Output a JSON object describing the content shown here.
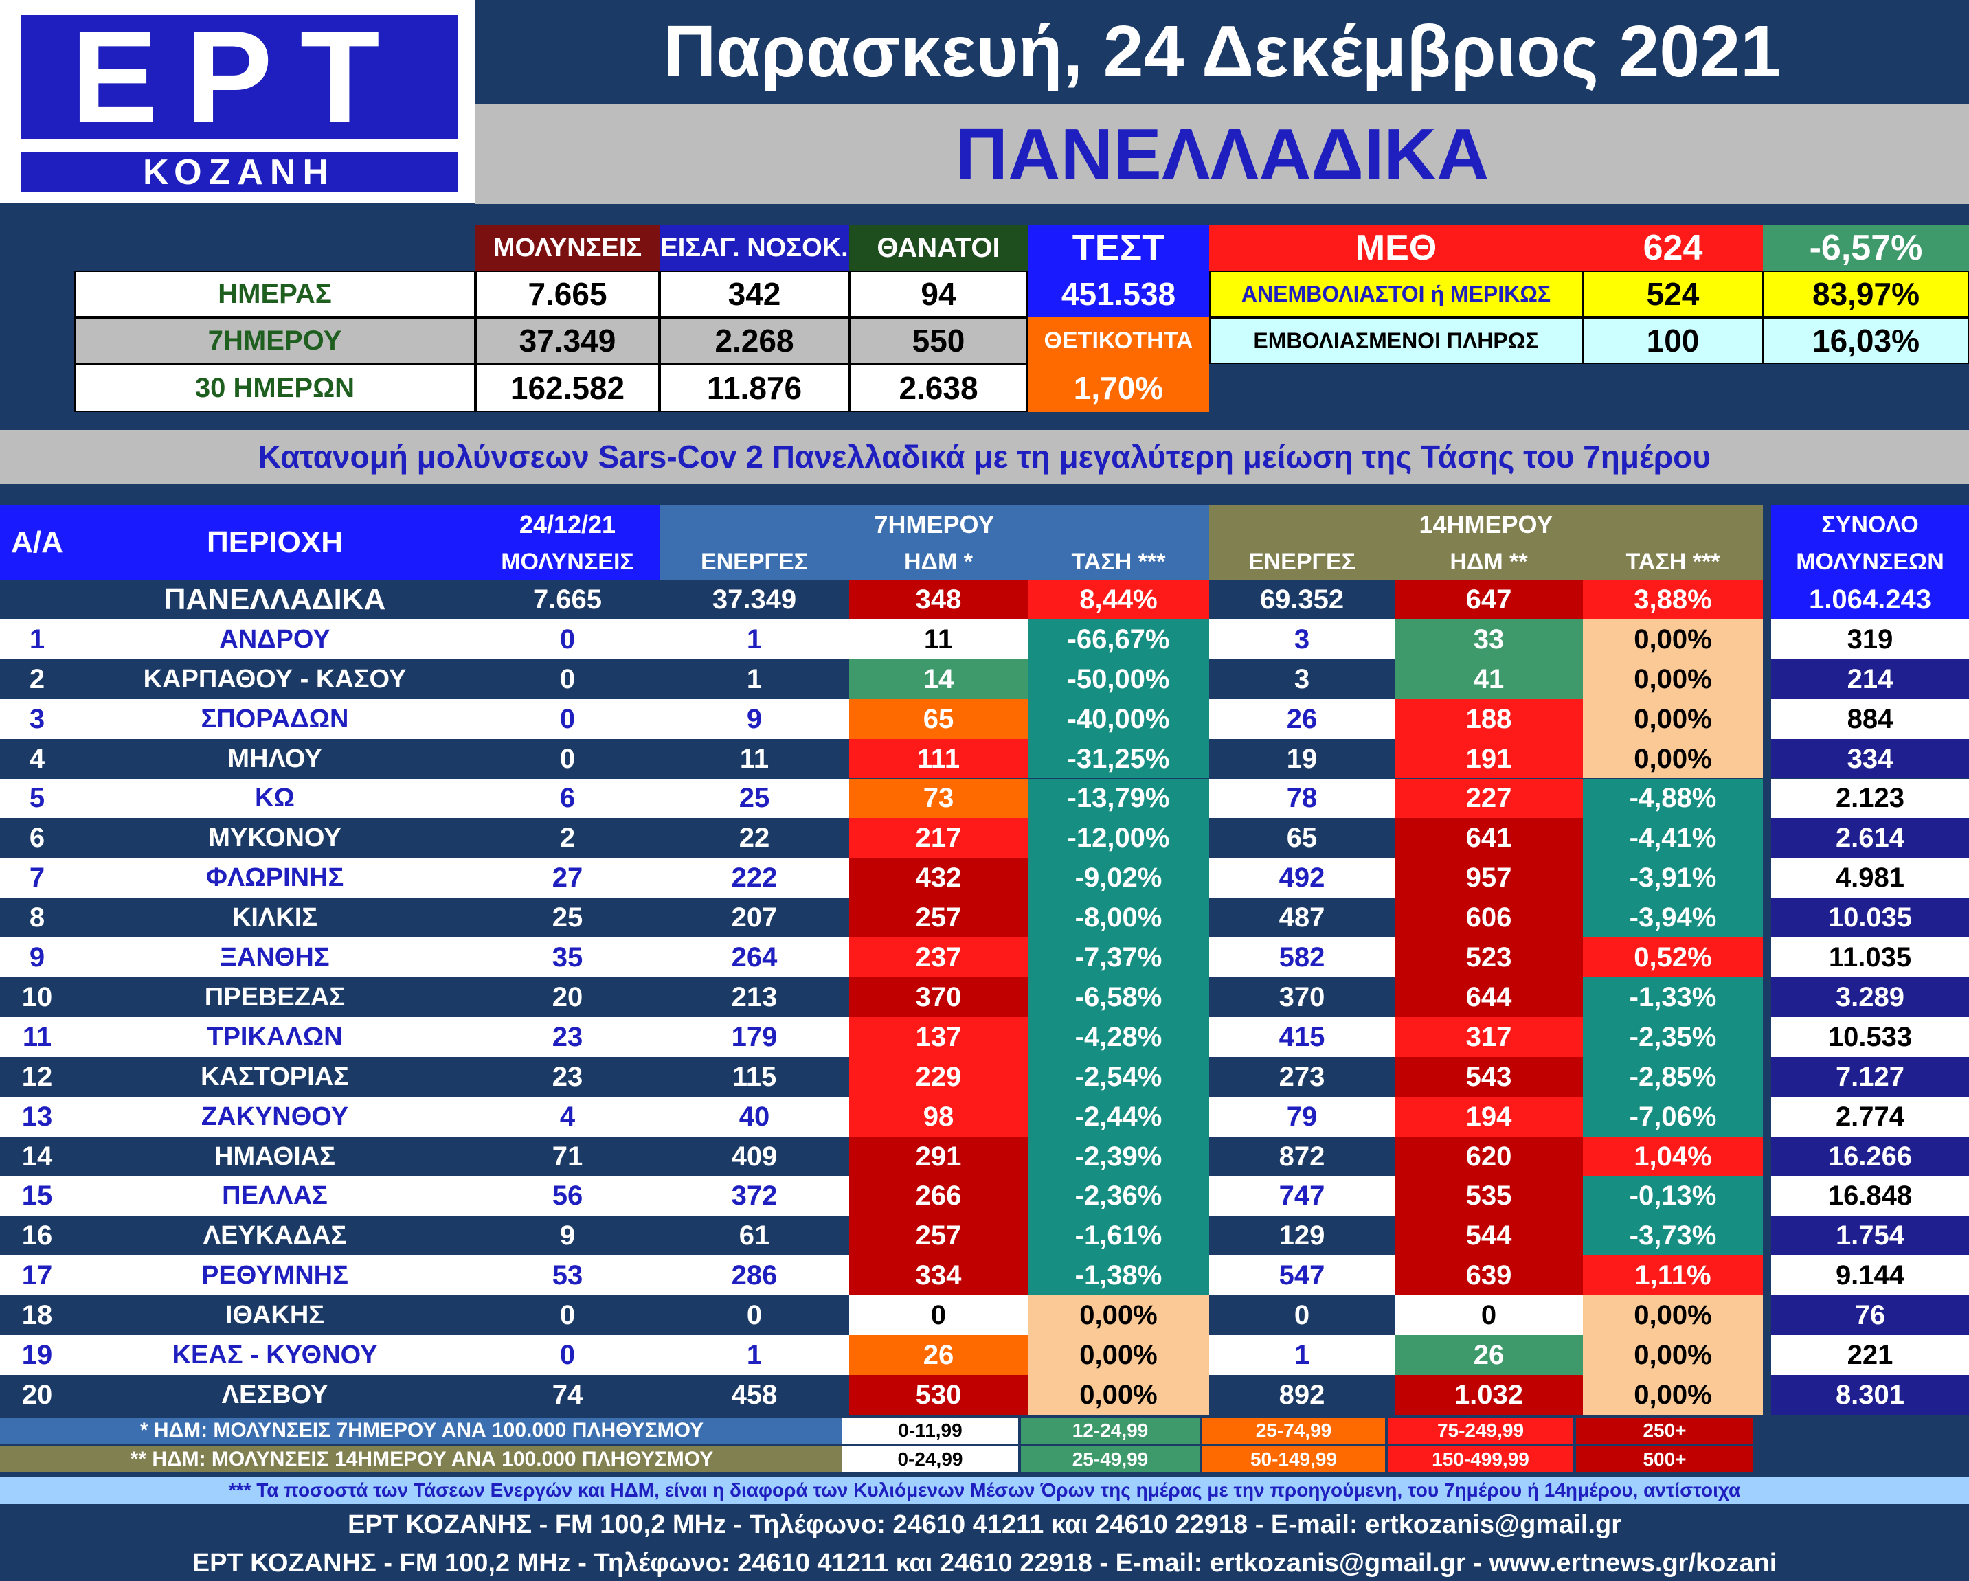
{
  "brand": {
    "logo": "ΕΡΤ",
    "city": "ΚΟΖΑΝΗ"
  },
  "date": "Παρασκευή, 24 Δεκέμβριος 2021",
  "scope": "ΠΑΝΕΛΛΑΔΙΚΑ",
  "summary": {
    "headers": {
      "infections": "ΜΟΛΥΝΣΕΙΣ",
      "hospital": "ΕΙΣΑΓ. ΝΟΣΟΚ.",
      "deaths": "ΘΑΝΑΤΟΙ",
      "tests": "ΤΕΣΤ"
    },
    "rows": [
      {
        "label": "ΗΜΕΡΑΣ",
        "infections": "7.665",
        "hospital": "342",
        "deaths": "94"
      },
      {
        "label": "7ΗΜΕΡΟΥ",
        "infections": "37.349",
        "hospital": "2.268",
        "deaths": "550"
      },
      {
        "label": "30 ΗΜΕΡΩΝ",
        "infections": "162.582",
        "hospital": "11.876",
        "deaths": "2.638"
      }
    ],
    "tests_value": "451.538",
    "positivity_label": "ΘΕΤΙΚΟΤΗΤΑ",
    "positivity_value": "1,70%",
    "icu": {
      "label": "ΜΕΘ",
      "value": "624",
      "change": "-6,57%",
      "unvax_label": "ΑΝΕΜΒΟΛΙΑΣΤΟΙ ή ΜΕΡΙΚΩΣ",
      "unvax_value": "524",
      "unvax_pct": "83,97%",
      "vax_label": "ΕΜΒΟΛΙΑΣΜΕΝΟΙ ΠΛΗΡΩΣ",
      "vax_value": "100",
      "vax_pct": "16,03%"
    }
  },
  "table_title": "Κατανομή μολύνσεων Sars-Cov 2 Πανελλαδικά με τη μεγαλύτερη μείωση της Τάσης του 7ημέρου",
  "table": {
    "headers": {
      "aa": "Α/Α",
      "region": "ΠΕΡΙΟΧΗ",
      "date": "24/12/21",
      "infections": "ΜΟΛΥΝΣΕΙΣ",
      "group7": "7ΗΜΕΡΟΥ",
      "group14": "14ΗΜΕΡΟΥ",
      "active": "ΕΝΕΡΓΕΣ",
      "hdm7": "ΗΔΜ *",
      "trend7": "ΤΑΣΗ ***",
      "hdm14": "ΗΔΜ **",
      "trend14": "ΤΑΣΗ ***",
      "total1": "ΣΥΝΟΛΟ",
      "total2": "ΜΟΛΥΝΣΕΩΝ"
    },
    "national": {
      "name": "ΠΑΝΕΛΛΑΔΙΚΑ",
      "inf": "7.665",
      "a7": "37.349",
      "h7": "348",
      "t7": "8,44%",
      "a14": "69.352",
      "h14": "647",
      "t14": "3,88%",
      "tot": "1.064.243"
    },
    "rows": [
      {
        "n": "1",
        "name": "ΑΝΔΡΟΥ",
        "inf": "0",
        "a7": "1",
        "h7": "11",
        "t7": "-66,67%",
        "a14": "3",
        "h14": "33",
        "t14": "0,00%",
        "tot": "319"
      },
      {
        "n": "2",
        "name": "ΚΑΡΠΑΘΟΥ - ΚΑΣΟΥ",
        "inf": "0",
        "a7": "1",
        "h7": "14",
        "t7": "-50,00%",
        "a14": "3",
        "h14": "41",
        "t14": "0,00%",
        "tot": "214"
      },
      {
        "n": "3",
        "name": "ΣΠΟΡΑΔΩΝ",
        "inf": "0",
        "a7": "9",
        "h7": "65",
        "t7": "-40,00%",
        "a14": "26",
        "h14": "188",
        "t14": "0,00%",
        "tot": "884"
      },
      {
        "n": "4",
        "name": "ΜΗΛΟΥ",
        "inf": "0",
        "a7": "11",
        "h7": "111",
        "t7": "-31,25%",
        "a14": "19",
        "h14": "191",
        "t14": "0,00%",
        "tot": "334"
      },
      {
        "n": "5",
        "name": "ΚΩ",
        "inf": "6",
        "a7": "25",
        "h7": "73",
        "t7": "-13,79%",
        "a14": "78",
        "h14": "227",
        "t14": "-4,88%",
        "tot": "2.123"
      },
      {
        "n": "6",
        "name": "ΜΥΚΟΝΟΥ",
        "inf": "2",
        "a7": "22",
        "h7": "217",
        "t7": "-12,00%",
        "a14": "65",
        "h14": "641",
        "t14": "-4,41%",
        "tot": "2.614"
      },
      {
        "n": "7",
        "name": "ΦΛΩΡΙΝΗΣ",
        "inf": "27",
        "a7": "222",
        "h7": "432",
        "t7": "-9,02%",
        "a14": "492",
        "h14": "957",
        "t14": "-3,91%",
        "tot": "4.981"
      },
      {
        "n": "8",
        "name": "ΚΙΛΚΙΣ",
        "inf": "25",
        "a7": "207",
        "h7": "257",
        "t7": "-8,00%",
        "a14": "487",
        "h14": "606",
        "t14": "-3,94%",
        "tot": "10.035"
      },
      {
        "n": "9",
        "name": "ΞΑΝΘΗΣ",
        "inf": "35",
        "a7": "264",
        "h7": "237",
        "t7": "-7,37%",
        "a14": "582",
        "h14": "523",
        "t14": "0,52%",
        "tot": "11.035"
      },
      {
        "n": "10",
        "name": "ΠΡΕΒΕΖΑΣ",
        "inf": "20",
        "a7": "213",
        "h7": "370",
        "t7": "-6,58%",
        "a14": "370",
        "h14": "644",
        "t14": "-1,33%",
        "tot": "3.289"
      },
      {
        "n": "11",
        "name": "ΤΡΙΚΑΛΩΝ",
        "inf": "23",
        "a7": "179",
        "h7": "137",
        "t7": "-4,28%",
        "a14": "415",
        "h14": "317",
        "t14": "-2,35%",
        "tot": "10.533"
      },
      {
        "n": "12",
        "name": "ΚΑΣΤΟΡΙΑΣ",
        "inf": "23",
        "a7": "115",
        "h7": "229",
        "t7": "-2,54%",
        "a14": "273",
        "h14": "543",
        "t14": "-2,85%",
        "tot": "7.127"
      },
      {
        "n": "13",
        "name": "ΖΑΚΥΝΘΟΥ",
        "inf": "4",
        "a7": "40",
        "h7": "98",
        "t7": "-2,44%",
        "a14": "79",
        "h14": "194",
        "t14": "-7,06%",
        "tot": "2.774"
      },
      {
        "n": "14",
        "name": "ΗΜΑΘΙΑΣ",
        "inf": "71",
        "a7": "409",
        "h7": "291",
        "t7": "-2,39%",
        "a14": "872",
        "h14": "620",
        "t14": "1,04%",
        "tot": "16.266"
      },
      {
        "n": "15",
        "name": "ΠΕΛΛΑΣ",
        "inf": "56",
        "a7": "372",
        "h7": "266",
        "t7": "-2,36%",
        "a14": "747",
        "h14": "535",
        "t14": "-0,13%",
        "tot": "16.848"
      },
      {
        "n": "16",
        "name": "ΛΕΥΚΑΔΑΣ",
        "inf": "9",
        "a7": "61",
        "h7": "257",
        "t7": "-1,61%",
        "a14": "129",
        "h14": "544",
        "t14": "-3,73%",
        "tot": "1.754"
      },
      {
        "n": "17",
        "name": "ΡΕΘΥΜΝΗΣ",
        "inf": "53",
        "a7": "286",
        "h7": "334",
        "t7": "-1,38%",
        "a14": "547",
        "h14": "639",
        "t14": "1,11%",
        "tot": "9.144"
      },
      {
        "n": "18",
        "name": "ΙΘΑΚΗΣ",
        "inf": "0",
        "a7": "0",
        "h7": "0",
        "t7": "0,00%",
        "a14": "0",
        "h14": "0",
        "t14": "0,00%",
        "tot": "76"
      },
      {
        "n": "19",
        "name": "ΚΕΑΣ - ΚΥΘΝΟΥ",
        "inf": "0",
        "a7": "1",
        "h7": "26",
        "t7": "0,00%",
        "a14": "1",
        "h14": "26",
        "t14": "0,00%",
        "tot": "221"
      },
      {
        "n": "20",
        "name": "ΛΕΣΒΟΥ",
        "inf": "74",
        "a7": "458",
        "h7": "530",
        "t7": "0,00%",
        "a14": "892",
        "h14": "1.032",
        "t14": "0,00%",
        "tot": "8.301"
      }
    ]
  },
  "legend": {
    "note7": "* ΗΔΜ: ΜΟΛΥΝΣΕΙΣ 7ΗΜΕΡΟΥ ΑΝΑ 100.000 ΠΛΗΘΥΣΜΟΥ",
    "note14": "** ΗΔΜ: ΜΟΛΥΝΣΕΙΣ 14ΗΜΕΡΟΥ ΑΝΑ 100.000 ΠΛΗΘΥΣΜΟΥ",
    "ranges7": [
      "0-11,99",
      "12-24,99",
      "25-74,99",
      "75-249,99",
      "250+"
    ],
    "ranges14": [
      "0-24,99",
      "25-49,99",
      "50-149,99",
      "150-499,99",
      "500+"
    ]
  },
  "footer": {
    "note": "*** Τα ποσοστά των Τάσεων Ενεργών και ΗΔΜ, είναι η διαφορά των Κυλιόμενων Μέσων Όρων της ημέρας με την προηγούμενη, του 7ημέρου ή 14ημέρου, αντίστοιχα",
    "line1": "ΕΡΤ ΚΟΖΑΝΗΣ - FM 100,2 MHz - Τηλέφωνο:  24610 41211 και 24610 22918 - E-mail: ertkozanis@gmail.gr",
    "line2": "ΕΡΤ ΚΟΖΑΝΗΣ - FM 100,2 MHz - Τηλέφωνο:  24610 41211 και 24610 22918 - E-mail: ertkozanis@gmail.gr - www.ertnews.gr/kozani"
  },
  "colors": {
    "background": "#1b3a66",
    "brand_blue": "#1f1fbf",
    "white": "#ffffff",
    "light_green": "#3f9a6b",
    "orange": "#ff6a00",
    "red": "#ff1a1a",
    "dark_red": "#c00000",
    "teal": "#168f82",
    "peach": "#fbc995",
    "yellow": "#ffff00",
    "light_cyan": "#ccffff"
  }
}
